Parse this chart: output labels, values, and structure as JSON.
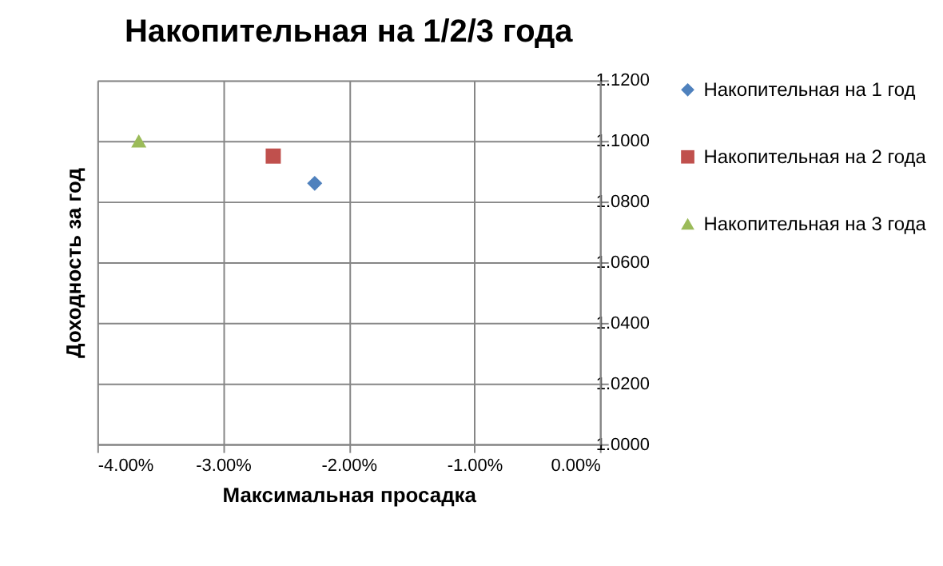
{
  "chart_data": {
    "type": "scatter",
    "title": "Накопительная на 1/2/3 года",
    "xlabel": "Максимальная просадка",
    "ylabel": "Доходность за год",
    "series": [
      {
        "name": "Накопительная на 1 год",
        "color": "#4f81bd",
        "marker": "diamond",
        "x": [
          -2.27
        ],
        "values": [
          1.086
        ]
      },
      {
        "name": "Накопительная на 2 года",
        "color": "#c0504d",
        "marker": "square",
        "x": [
          -2.6
        ],
        "values": [
          1.095
        ]
      },
      {
        "name": "Накопительная на 3 года",
        "color": "#9bbb59",
        "marker": "triangle",
        "x": [
          -3.67
        ],
        "values": [
          1.1
        ]
      }
    ],
    "xlim": [
      -4,
      0
    ],
    "xticks": [
      {
        "value": -4,
        "label": "-4.00%"
      },
      {
        "value": -3,
        "label": "-3.00%"
      },
      {
        "value": -2,
        "label": "-2.00%"
      },
      {
        "value": -1,
        "label": "-1.00%"
      },
      {
        "value": 0,
        "label": "0.00%"
      }
    ],
    "ylim": [
      1.0,
      1.12
    ],
    "yticks": [
      {
        "value": 1.0,
        "label": "1.0000"
      },
      {
        "value": 1.02,
        "label": "1.0200"
      },
      {
        "value": 1.04,
        "label": "1.0400"
      },
      {
        "value": 1.06,
        "label": "1.0600"
      },
      {
        "value": 1.08,
        "label": "1.0800"
      },
      {
        "value": 1.1,
        "label": "1.1000"
      },
      {
        "value": 1.12,
        "label": "1.1200"
      }
    ],
    "grid": true,
    "legend": "right"
  }
}
